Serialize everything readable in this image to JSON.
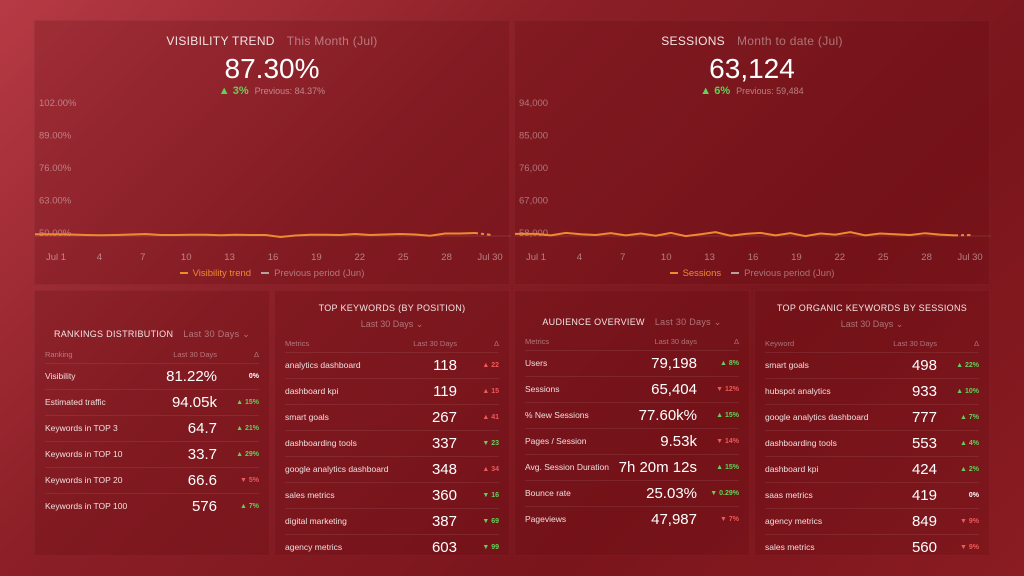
{
  "visibility": {
    "title": "VISIBILITY TREND",
    "period": "This Month (Jul)",
    "value": "87.30%",
    "change": "▲ 3%",
    "previous": "Previous: 84.37%",
    "legend_current": "Visibility trend",
    "legend_previous": "Previous period (Jun)"
  },
  "sessions": {
    "title": "SESSIONS",
    "period": "Month to date (Jul)",
    "value": "63,124",
    "change": "▲ 6%",
    "previous": "Previous: 59,484",
    "legend_current": "Sessions",
    "legend_previous": "Previous period (Jun)"
  },
  "chart_data": [
    {
      "type": "line",
      "ylim": [
        50,
        102
      ],
      "y_ticks": [
        "102.00%",
        "89.00%",
        "76.00%",
        "63.00%",
        "50.00%"
      ],
      "x_ticks": [
        "Jul 1",
        "4",
        "7",
        "10",
        "13",
        "16",
        "19",
        "22",
        "25",
        "28",
        "Jul 30"
      ],
      "colors": {
        "current": "#f08a2e",
        "previous": "#b9a0a0"
      },
      "series": [
        {
          "name": "Visibility trend",
          "x": [
            1,
            2,
            3,
            4,
            5,
            6,
            7,
            8,
            9,
            10,
            11,
            12,
            13,
            14,
            15,
            16,
            17,
            18,
            19,
            20,
            21,
            22,
            23,
            24,
            25,
            26,
            27,
            28,
            29,
            30
          ],
          "values": [
            50.3,
            50.2,
            50.0,
            49.9,
            50.0,
            50.2,
            50.4,
            50.0,
            50.0,
            50.1,
            50.1,
            49.9,
            50.1,
            50.0,
            50.0,
            49.2,
            49.8,
            50.1,
            50.1,
            50.0,
            50.4,
            50.0,
            50.2,
            50.4,
            50.2,
            49.7,
            50.6,
            50.6,
            50.8,
            50.1
          ]
        }
      ]
    },
    {
      "type": "line",
      "ylim": [
        58000,
        94000
      ],
      "y_ticks": [
        "94,000",
        "85,000",
        "76,000",
        "67,000",
        "58,000"
      ],
      "x_ticks": [
        "Jul 1",
        "4",
        "7",
        "10",
        "13",
        "16",
        "19",
        "22",
        "25",
        "28",
        "Jul 30"
      ],
      "colors": {
        "current": "#f08a2e",
        "previous": "#b9a0a0"
      },
      "series": [
        {
          "name": "Sessions",
          "x": [
            1,
            2,
            3,
            4,
            5,
            6,
            7,
            8,
            9,
            10,
            11,
            12,
            13,
            14,
            15,
            16,
            17,
            18,
            19,
            20,
            21,
            22,
            23,
            24,
            25,
            26,
            27,
            28,
            29,
            30
          ],
          "values": [
            58300,
            57900,
            58600,
            58200,
            58000,
            58500,
            57900,
            58400,
            57800,
            58600,
            57700,
            58200,
            58800,
            57800,
            58300,
            58600,
            57900,
            58500,
            57700,
            58400,
            58100,
            58800,
            57900,
            58400,
            58200,
            58000,
            58500,
            58100,
            57900,
            58000
          ]
        }
      ]
    }
  ],
  "rankings": {
    "title": "RANKINGS DISTRIBUTION",
    "period": "Last 30 Days ⌄",
    "headers": [
      "Ranking",
      "Last 30 Days",
      "Δ"
    ],
    "rows": [
      {
        "label": "Visibility",
        "value": "81.22%",
        "delta": "0%",
        "dir": "neu"
      },
      {
        "label": "Estimated traffic",
        "value": "94.05k",
        "delta": "▲ 15%",
        "dir": "pos"
      },
      {
        "label": "Keywords in TOP 3",
        "value": "64.7",
        "delta": "▲ 21%",
        "dir": "pos"
      },
      {
        "label": "Keywords in TOP 10",
        "value": "33.7",
        "delta": "▲ 29%",
        "dir": "pos"
      },
      {
        "label": "Keywords in TOP 20",
        "value": "66.6",
        "delta": "▼ 5%",
        "dir": "neg"
      },
      {
        "label": "Keywords in TOP 100",
        "value": "576",
        "delta": "▲ 7%",
        "dir": "pos"
      }
    ]
  },
  "top_keywords": {
    "title": "TOP KEYWORDS (BY POSITION)",
    "period": "Last 30 Days ⌄",
    "headers": [
      "Metrics",
      "Last 30 Days",
      "Δ"
    ],
    "rows": [
      {
        "label": "analytics dashboard",
        "value": "118",
        "delta": "▲ 22",
        "dir": "neg"
      },
      {
        "label": "dashboard kpi",
        "value": "119",
        "delta": "▲ 15",
        "dir": "neg"
      },
      {
        "label": "smart goals",
        "value": "267",
        "delta": "▲ 41",
        "dir": "neg"
      },
      {
        "label": "dashboarding tools",
        "value": "337",
        "delta": "▼ 23",
        "dir": "pos"
      },
      {
        "label": "google analytics dashboard",
        "value": "348",
        "delta": "▲ 34",
        "dir": "neg"
      },
      {
        "label": "sales metrics",
        "value": "360",
        "delta": "▼ 16",
        "dir": "pos"
      },
      {
        "label": "digital marketing",
        "value": "387",
        "delta": "▼ 69",
        "dir": "pos"
      },
      {
        "label": "agency metrics",
        "value": "603",
        "delta": "▼ 99",
        "dir": "pos"
      }
    ]
  },
  "audience": {
    "title": "AUDIENCE OVERVIEW",
    "period": "Last 30 Days ⌄",
    "headers": [
      "Metrics",
      "Last 30 days",
      "Δ"
    ],
    "rows": [
      {
        "label": "Users",
        "value": "79,198",
        "delta": "▲ 8%",
        "dir": "pos"
      },
      {
        "label": "Sessions",
        "value": "65,404",
        "delta": "▼ 12%",
        "dir": "neg"
      },
      {
        "label": "% New Sessions",
        "value": "77.60k%",
        "delta": "▲ 15%",
        "dir": "pos"
      },
      {
        "label": "Pages / Session",
        "value": "9.53k",
        "delta": "▼ 14%",
        "dir": "neg"
      },
      {
        "label": "Avg. Session Duration",
        "value": "7h 20m 12s",
        "delta": "▲ 15%",
        "dir": "pos"
      },
      {
        "label": "Bounce rate",
        "value": "25.03%",
        "delta": "▼ 0.29%",
        "dir": "pos"
      },
      {
        "label": "Pageviews",
        "value": "47,987",
        "delta": "▼ 7%",
        "dir": "neg"
      }
    ]
  },
  "organic": {
    "title": "TOP ORGANIC KEYWORDS BY SESSIONS",
    "period": "Last 30 Days ⌄",
    "headers": [
      "Keyword",
      "Last 30 Days",
      "Δ"
    ],
    "rows": [
      {
        "label": "smart goals",
        "value": "498",
        "delta": "▲ 22%",
        "dir": "pos"
      },
      {
        "label": "hubspot analytics",
        "value": "933",
        "delta": "▲ 10%",
        "dir": "pos"
      },
      {
        "label": "google analytics dashboard",
        "value": "777",
        "delta": "▲ 7%",
        "dir": "pos"
      },
      {
        "label": "dashboarding tools",
        "value": "553",
        "delta": "▲ 4%",
        "dir": "pos"
      },
      {
        "label": "dashboard kpi",
        "value": "424",
        "delta": "▲ 2%",
        "dir": "pos"
      },
      {
        "label": "saas metrics",
        "value": "419",
        "delta": "0%",
        "dir": "neu"
      },
      {
        "label": "agency metrics",
        "value": "849",
        "delta": "▼ 9%",
        "dir": "neg"
      },
      {
        "label": "sales metrics",
        "value": "560",
        "delta": "▼ 9%",
        "dir": "neg"
      }
    ]
  }
}
